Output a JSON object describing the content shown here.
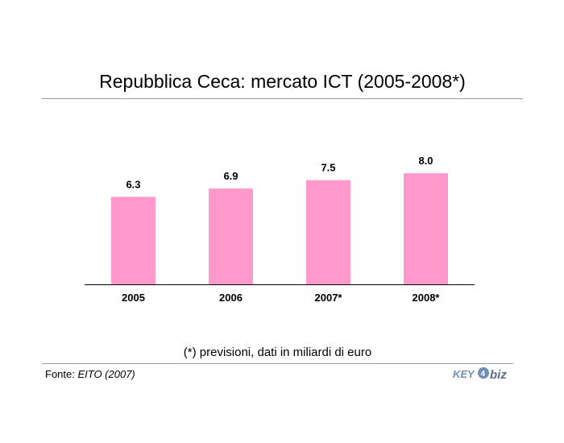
{
  "title": "Repubblica Ceca: mercato ICT (2005-2008*)",
  "chart_data": {
    "type": "bar",
    "categories": [
      "2005",
      "2006",
      "2007*",
      "2008*"
    ],
    "values": [
      6.3,
      6.9,
      7.5,
      8.0
    ],
    "value_labels": [
      "6.3",
      "6.9",
      "7.5",
      "8.0"
    ],
    "ylim": [
      0,
      11.6
    ],
    "bar_color": "#ff99cc",
    "grid": false,
    "legend": "none"
  },
  "note": "(*) previsioni, dati in miliardi di euro",
  "source": {
    "label": "Fonte: ",
    "name": "EITO (2007)"
  },
  "logo": {
    "text_left": "KEY",
    "text_right": "biz",
    "color": "#6f8fb5"
  }
}
